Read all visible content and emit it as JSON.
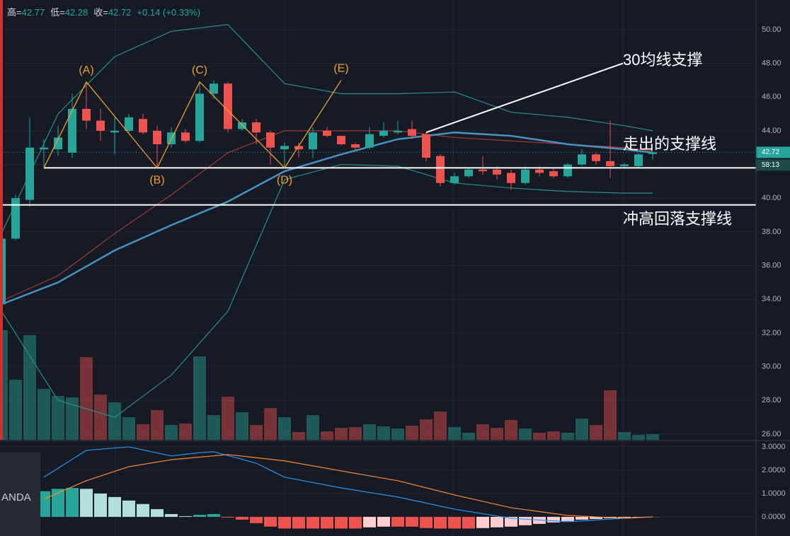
{
  "chart_data": [
    {
      "type": "candlestick",
      "header": {
        "items": [
          {
            "label": "高=",
            "value": "42.77"
          },
          {
            "label": "低=",
            "value": "42.28"
          },
          {
            "label": "收=",
            "value": "42.72"
          }
        ],
        "change": "+0.14 (+0.33%)"
      },
      "up_color": "#26a69a",
      "down_color": "#ef5350",
      "open": [
        33.7,
        37.6,
        39.9,
        42.9,
        42.9,
        42.7,
        45.3,
        44.6,
        43.9,
        44.0,
        44.7,
        44.0,
        43.2,
        43.9,
        43.4,
        46.2,
        46.8,
        44.1,
        44.5,
        43.9,
        42.9,
        43.1,
        42.9,
        44.0,
        43.7,
        43.2,
        43.0,
        43.7,
        43.9,
        44.1,
        43.8,
        42.5,
        40.9,
        41.3,
        41.7,
        41.7,
        41.5,
        40.9,
        41.7,
        41.6,
        41.3,
        42.0,
        42.6,
        42.2,
        41.9,
        41.9,
        42.62
      ],
      "high": [
        37.7,
        40.2,
        44.8,
        43.5,
        44.3,
        46.2,
        46.9,
        45.3,
        44.8,
        45.0,
        45.0,
        44.3,
        44.2,
        44.1,
        46.9,
        47.0,
        46.9,
        44.7,
        44.7,
        44.0,
        43.3,
        43.3,
        44.2,
        44.2,
        43.7,
        43.3,
        44.2,
        44.5,
        44.6,
        44.6,
        43.9,
        42.6,
        41.5,
        41.8,
        42.5,
        41.9,
        41.7,
        41.9,
        41.9,
        41.8,
        42.1,
        42.9,
        42.7,
        44.6,
        42.1,
        42.7,
        42.77
      ],
      "low": [
        33.6,
        37.5,
        39.5,
        41.8,
        42.5,
        42.4,
        44.1,
        43.4,
        42.6,
        43.9,
        43.8,
        41.8,
        43.0,
        43.3,
        43.3,
        45.9,
        43.9,
        44.0,
        43.2,
        42.0,
        41.8,
        42.4,
        42.4,
        43.6,
        43.1,
        42.8,
        42.9,
        43.6,
        43.8,
        43.5,
        42.2,
        40.7,
        40.8,
        41.2,
        41.4,
        41.1,
        40.5,
        40.8,
        41.3,
        41.2,
        41.2,
        41.9,
        42.0,
        41.2,
        41.8,
        41.8,
        42.28
      ],
      "close": [
        37.6,
        40.0,
        43.0,
        43.0,
        43.6,
        45.3,
        44.6,
        44.0,
        44.0,
        44.8,
        43.9,
        43.2,
        43.9,
        43.4,
        46.2,
        46.8,
        44.1,
        44.5,
        43.9,
        43.0,
        43.1,
        42.9,
        43.9,
        43.7,
        43.2,
        43.0,
        43.8,
        44.0,
        44.0,
        43.7,
        42.4,
        40.9,
        41.3,
        41.7,
        41.6,
        41.4,
        40.9,
        41.7,
        41.5,
        41.3,
        42.0,
        42.6,
        42.2,
        41.9,
        42.0,
        42.6,
        42.72
      ],
      "volume": [
        155,
        85,
        148,
        72,
        62,
        60,
        117,
        64,
        53,
        32,
        22,
        42,
        21,
        23,
        118,
        35,
        61,
        39,
        21,
        45,
        32,
        11,
        35,
        12,
        17,
        18,
        22,
        19,
        16,
        20,
        29,
        40,
        18,
        10,
        22,
        17,
        28,
        16,
        10,
        12,
        10,
        30,
        21,
        70,
        11,
        7,
        8
      ],
      "ylim": [
        25.66,
        51.76
      ],
      "yticks": [
        {
          "value": 26,
          "label": "26.00"
        },
        {
          "value": 28,
          "label": "28.00"
        },
        {
          "value": 30,
          "label": "30.00"
        },
        {
          "value": 32,
          "label": "32.00"
        },
        {
          "value": 34,
          "label": "34.00"
        },
        {
          "value": 36,
          "label": "36.00"
        },
        {
          "value": 38,
          "label": "38.00"
        },
        {
          "value": 40,
          "label": "40.00"
        },
        {
          "value": 42,
          "label": "42.00"
        },
        {
          "value": 44,
          "label": "44.00"
        },
        {
          "value": 46,
          "label": "46.00"
        },
        {
          "value": 48,
          "label": "48.00"
        },
        {
          "value": 50,
          "label": "50.00"
        }
      ],
      "grid": true,
      "overlays": [
        {
          "color": "#2a8f86",
          "x": [
            0,
            4,
            8,
            12,
            16,
            20,
            24,
            28,
            32,
            36,
            40,
            44,
            46
          ],
          "values": [
            37.9,
            45.0,
            48.4,
            49.9,
            50.3,
            46.8,
            46.2,
            46.2,
            46.3,
            45.1,
            44.8,
            44.3,
            44.0
          ]
        },
        {
          "color": "#2a8f86",
          "x": [
            0,
            4,
            8,
            12,
            16,
            20,
            24,
            28,
            32,
            36,
            40,
            44,
            46
          ],
          "values": [
            33.3,
            28.0,
            27.0,
            29.5,
            33.3,
            41.1,
            42.0,
            41.9,
            40.9,
            40.6,
            40.4,
            40.3,
            40.3
          ]
        },
        {
          "color": "#a33a3a",
          "x": [
            0,
            4,
            8,
            12,
            16,
            20,
            24,
            28,
            32,
            36,
            40,
            44,
            46
          ],
          "values": [
            33.9,
            35.4,
            37.9,
            40.2,
            42.7,
            44.0,
            44.0,
            44.0,
            43.6,
            43.4,
            43.2,
            43.0,
            42.8
          ]
        },
        {
          "color": "#4a90c0",
          "x": [
            0,
            4,
            8,
            12,
            16,
            20,
            24,
            28,
            32,
            36,
            40,
            44,
            46
          ],
          "values": [
            33.7,
            35.0,
            36.9,
            38.4,
            39.8,
            41.6,
            42.6,
            43.5,
            43.9,
            43.7,
            43.2,
            42.9,
            42.7
          ]
        }
      ],
      "hlines": [
        41.8,
        39.6
      ],
      "trendline": {
        "x": [
          30,
          43.9
        ],
        "values": [
          43.9,
          48.0
        ]
      },
      "wave": {
        "labels": [
          null,
          "(A)",
          "(B)",
          "(C)",
          "(D)",
          "(E)"
        ],
        "x": [
          3,
          6,
          11,
          14,
          20,
          24
        ],
        "values": [
          41.8,
          46.9,
          41.8,
          46.9,
          41.8,
          47.0
        ]
      },
      "annotations": [
        "30均线支撑",
        "走出的支撑线",
        "冲高回落支撑线"
      ],
      "last_price": 42.72,
      "countdown": "58:13"
    },
    {
      "type": "macd",
      "ylim": [
        -0.82,
        3.24
      ],
      "yticks": [
        {
          "value": 0,
          "label": "0.0000"
        },
        {
          "value": 1,
          "label": "1.0000"
        },
        {
          "value": 2,
          "label": "2.0000"
        },
        {
          "value": 3,
          "label": "3.0000"
        }
      ],
      "histogram": [
        null,
        null,
        null,
        1.1,
        1.2,
        1.24,
        1.2,
        1.0,
        0.85,
        0.7,
        0.55,
        0.33,
        0.12,
        0.03,
        0.09,
        0.12,
        -0.03,
        -0.12,
        -0.27,
        -0.42,
        -0.5,
        -0.5,
        -0.5,
        -0.5,
        -0.5,
        -0.5,
        -0.45,
        -0.42,
        -0.42,
        -0.42,
        -0.48,
        -0.5,
        -0.5,
        -0.5,
        -0.48,
        -0.45,
        -0.42,
        -0.36,
        -0.3,
        -0.24,
        -0.18,
        -0.12,
        -0.09,
        -0.06,
        -0.03,
        -0.01,
        0
      ],
      "hist_colors": [
        "#26a69a",
        "#b2dfdb",
        "#ef5350",
        "#ffcdd2"
      ],
      "macd": {
        "color": "#2196f3",
        "x": [
          3,
          6,
          9,
          12,
          14,
          15,
          18,
          20,
          24,
          28,
          32,
          36,
          40,
          44,
          46
        ],
        "values": [
          1.7,
          2.85,
          3.0,
          2.61,
          2.75,
          2.79,
          2.3,
          1.7,
          1.24,
          0.85,
          0.33,
          -0.06,
          -0.21,
          -0.06,
          0
        ]
      },
      "signal": {
        "color": "#ff8a30",
        "x": [
          3,
          6,
          9,
          12,
          16,
          20,
          24,
          28,
          32,
          36,
          40,
          44,
          46
        ],
        "values": [
          0.76,
          1.55,
          2.15,
          2.45,
          2.67,
          2.4,
          1.97,
          1.55,
          0.94,
          0.39,
          0.06,
          -0.06,
          0
        ]
      },
      "watermark": "ANDA"
    }
  ]
}
